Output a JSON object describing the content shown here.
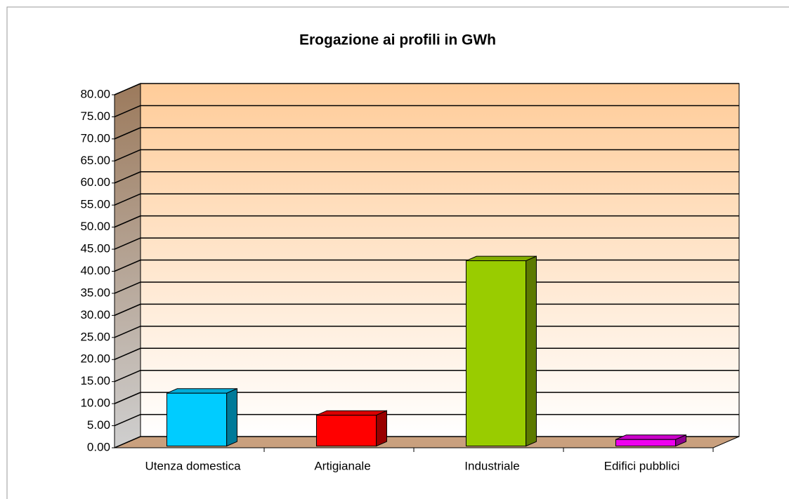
{
  "chart_data": {
    "type": "bar3d",
    "title": "Erogazione ai profili in GWh",
    "categories": [
      "Utenza domestica",
      "Artigianale",
      "Industriale",
      "Edifici pubblici"
    ],
    "values": [
      12,
      7,
      42,
      1.5
    ],
    "colors": [
      "#00ccff",
      "#ff0000",
      "#99cc00",
      "#ee00ee"
    ],
    "ylim": [
      0,
      80
    ],
    "yticks": [
      {
        "value": 0,
        "label": "0.00"
      },
      {
        "value": 5,
        "label": "5.00"
      },
      {
        "value": 10,
        "label": "10.00"
      },
      {
        "value": 15,
        "label": "15.00"
      },
      {
        "value": 20,
        "label": "20.00"
      },
      {
        "value": 25,
        "label": "25.00"
      },
      {
        "value": 30,
        "label": "30.00"
      },
      {
        "value": 35,
        "label": "35.00"
      },
      {
        "value": 40,
        "label": "40.00"
      },
      {
        "value": 45,
        "label": "45.00"
      },
      {
        "value": 50,
        "label": "50.00"
      },
      {
        "value": 55,
        "label": "55.00"
      },
      {
        "value": 60,
        "label": "60.00"
      },
      {
        "value": 65,
        "label": "65.00"
      },
      {
        "value": 70,
        "label": "70.00"
      },
      {
        "value": 75,
        "label": "75.00"
      },
      {
        "value": 80,
        "label": "80.00"
      }
    ],
    "grid": true
  }
}
